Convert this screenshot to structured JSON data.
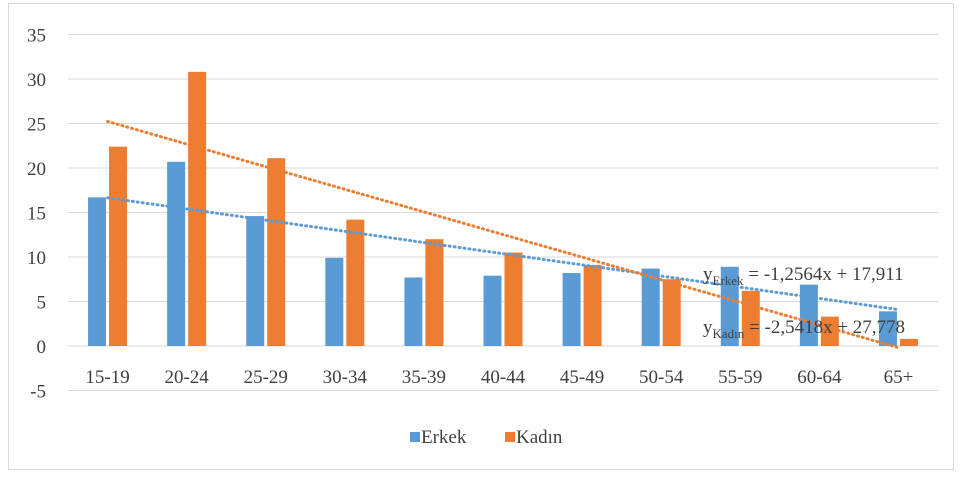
{
  "chart_data": {
    "type": "bar",
    "categories": [
      "15-19",
      "20-24",
      "25-29",
      "30-34",
      "35-39",
      "40-44",
      "45-49",
      "50-54",
      "55-59",
      "60-64",
      "65+"
    ],
    "series": [
      {
        "name": "Erkek",
        "color": "#5B9BD5",
        "values": [
          16.7,
          20.7,
          14.6,
          9.9,
          7.7,
          7.9,
          8.2,
          8.7,
          8.9,
          6.9,
          3.9
        ]
      },
      {
        "name": "Kadın",
        "color": "#ED7D31",
        "values": [
          22.4,
          30.8,
          21.1,
          14.2,
          12.0,
          10.5,
          9.1,
          7.5,
          6.2,
          3.3,
          0.8
        ]
      }
    ],
    "trendlines": [
      {
        "series": "Erkek",
        "slope": -1.2564,
        "intercept": 17.911,
        "color": "#5B9BD5",
        "label_prefix": "y",
        "label_sub": "Erkek",
        "label_rest": " = -1,2564x + 17,911"
      },
      {
        "series": "Kadın",
        "slope": -2.5418,
        "intercept": 27.778,
        "color": "#ED7D31",
        "label_prefix": "y",
        "label_sub": "Kadın",
        "label_rest": " = -2,5418x + 27,778"
      }
    ],
    "yticks": [
      35,
      30,
      25,
      20,
      15,
      10,
      5,
      0,
      -5
    ],
    "ylim": [
      -5,
      35
    ],
    "grid": true,
    "legend_position": "bottom"
  },
  "legend": {
    "items": [
      {
        "label": "Erkek",
        "color": "#5B9BD5"
      },
      {
        "label": "Kadın",
        "color": "#ED7D31"
      }
    ]
  }
}
